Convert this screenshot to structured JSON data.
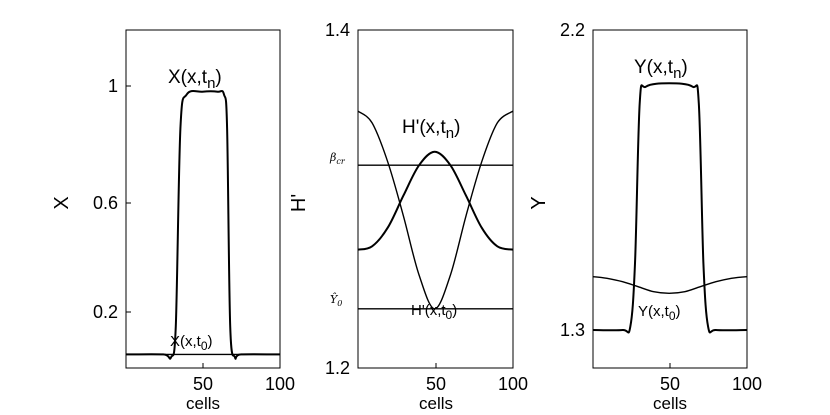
{
  "chart_data": [
    {
      "type": "line",
      "xlabel": "cells",
      "ylabel": "X",
      "xlim": [
        1,
        100
      ],
      "ylim": [
        0,
        1.2
      ],
      "xticks": [
        "50",
        "100"
      ],
      "yticks": [
        "0.2",
        "0.6",
        "1"
      ],
      "annotations": [
        "X(x,t_n)",
        "X(x,t_0)"
      ],
      "series": [
        {
          "name": "X(x,t_n)",
          "x": [
            1,
            25,
            30,
            33,
            36,
            40,
            50,
            60,
            64,
            66,
            68,
            71,
            75,
            100
          ],
          "y": [
            0.05,
            0.05,
            0.04,
            0.15,
            0.85,
            0.97,
            0.98,
            0.98,
            0.97,
            0.85,
            0.15,
            0.04,
            0.05,
            0.05
          ]
        },
        {
          "name": "X(x,t_0)",
          "x": [
            1,
            100
          ],
          "y": [
            0.05,
            0.05
          ]
        }
      ]
    },
    {
      "type": "line",
      "xlabel": "cells",
      "ylabel": "H'",
      "xlim": [
        1,
        100
      ],
      "ylim": [
        1.2,
        1.4
      ],
      "xticks": [
        "50",
        "100"
      ],
      "yticks": [
        "1.2",
        "1.4"
      ],
      "hlines": [
        {
          "label": "β_cr",
          "y": 1.32
        },
        {
          "label": "Ŷ_0",
          "y": 1.235
        }
      ],
      "annotations": [
        "H'(x,t_n)",
        "H'(x,t_0)"
      ],
      "series": [
        {
          "name": "H'(x,t_n)",
          "x": [
            1,
            10,
            20,
            30,
            40,
            50,
            60,
            70,
            80,
            90,
            100
          ],
          "y": [
            1.27,
            1.272,
            1.283,
            1.302,
            1.32,
            1.328,
            1.32,
            1.302,
            1.283,
            1.272,
            1.27
          ]
        },
        {
          "name": "H'(x,t_0)",
          "x": [
            1,
            10,
            20,
            30,
            40,
            50,
            60,
            70,
            80,
            90,
            100
          ],
          "y": [
            1.352,
            1.345,
            1.322,
            1.29,
            1.255,
            1.235,
            1.255,
            1.29,
            1.322,
            1.345,
            1.352
          ]
        }
      ]
    },
    {
      "type": "line",
      "xlabel": "cells",
      "ylabel": "Y",
      "xlim": [
        1,
        100
      ],
      "ylim": [
        1.3,
        2.2
      ],
      "xticks": [
        "50",
        "100"
      ],
      "yticks": [
        "1.3",
        "2.2"
      ],
      "annotations": [
        "Y(x,t_n)",
        "Y(x,t_0)"
      ],
      "series": [
        {
          "name": "Y(x,t_n)",
          "x": [
            1,
            20,
            25,
            28,
            31,
            35,
            50,
            65,
            69,
            72,
            75,
            80,
            100
          ],
          "y": [
            1.3,
            1.3,
            1.31,
            1.5,
            1.98,
            2.03,
            2.04,
            2.03,
            1.98,
            1.5,
            1.31,
            1.3,
            1.3
          ]
        },
        {
          "name": "Y(x,t_0)",
          "x": [
            1,
            10,
            20,
            30,
            40,
            50,
            60,
            70,
            80,
            90,
            100
          ],
          "y": [
            1.46,
            1.455,
            1.445,
            1.43,
            1.415,
            1.41,
            1.415,
            1.43,
            1.445,
            1.455,
            1.46
          ]
        }
      ]
    }
  ]
}
